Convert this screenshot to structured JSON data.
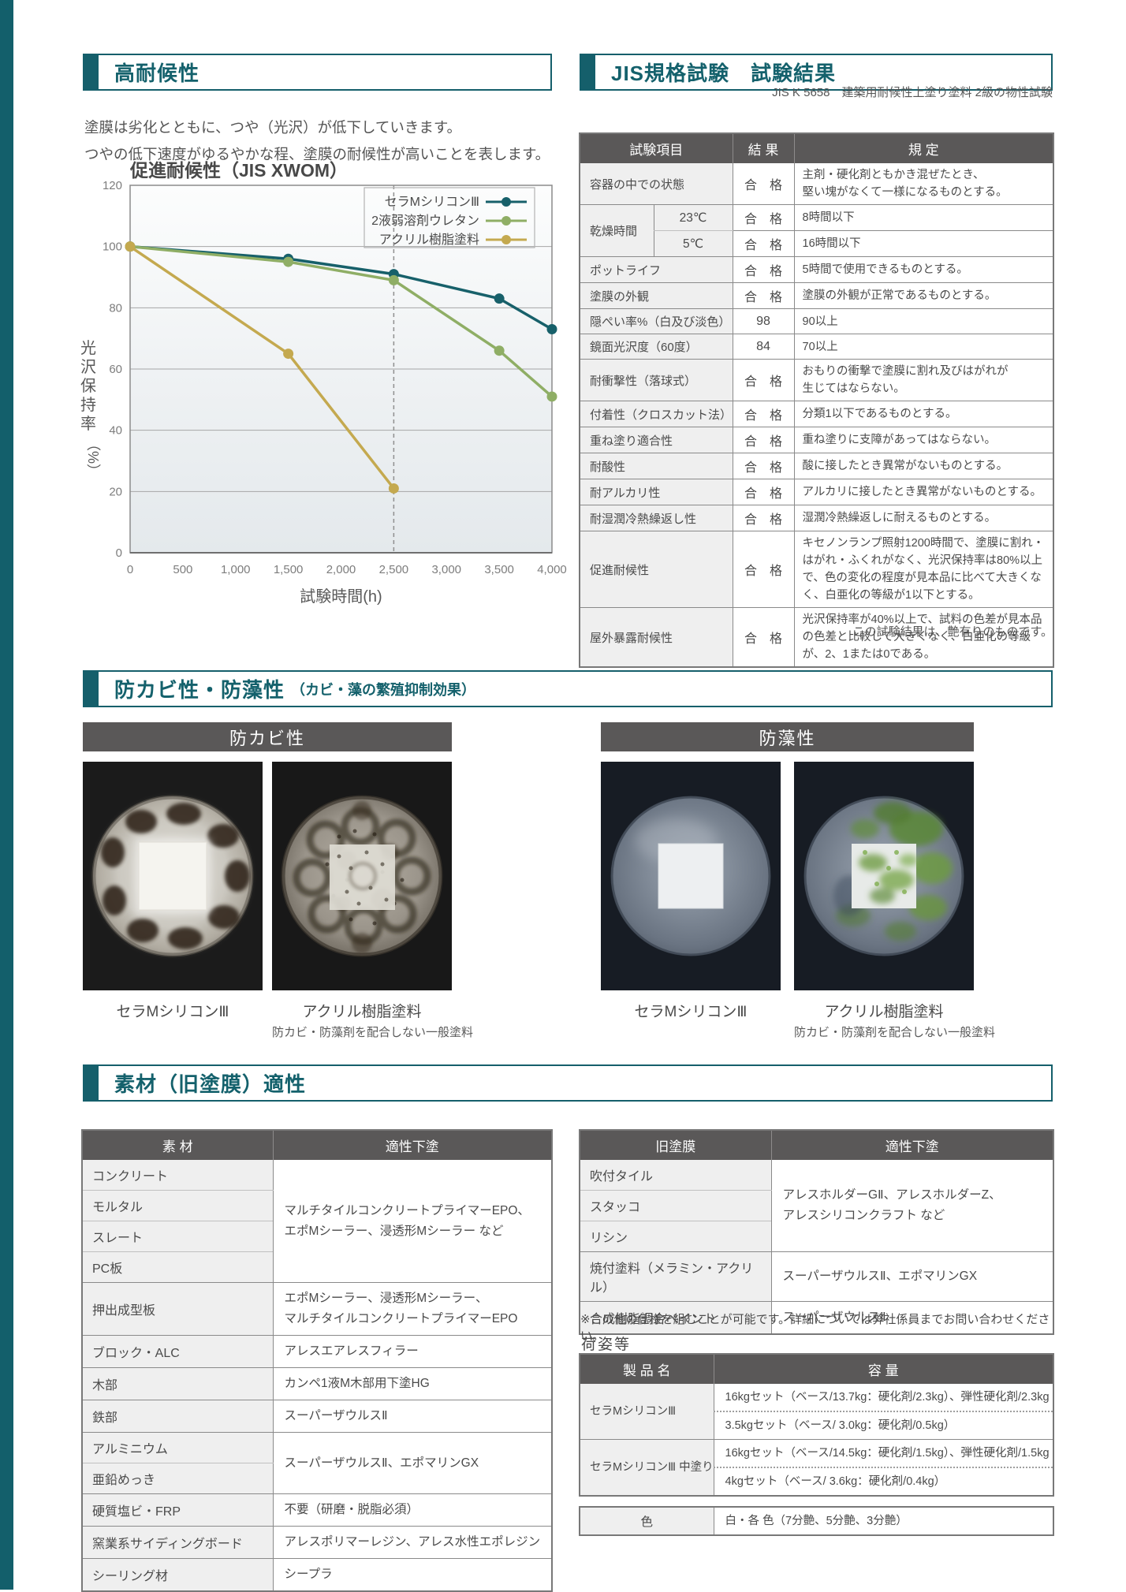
{
  "theme": {
    "accent": "#155f6b",
    "table_header_bg": "#5a5858",
    "label_cell_bg": "#efefef"
  },
  "weather": {
    "title": "高耐候性",
    "desc1": "塗膜は劣化とともに、つや（光沢）が低下していきます。",
    "desc2": "つやの低下速度がゆるやかな程、塗膜の耐候性が高いことを表します。"
  },
  "chart_data": {
    "type": "line",
    "title": "促進耐候性（JIS XWOM）",
    "xlabel": "試験時間(h)",
    "ylabel": "光沢保持率（%）",
    "xlim": [
      0,
      4000
    ],
    "ylim": [
      0,
      120
    ],
    "xticks": [
      0,
      500,
      1000,
      1500,
      2000,
      2500,
      3000,
      3500,
      4000
    ],
    "xtick_labels": [
      "0",
      "500",
      "1,000",
      "1,500",
      "2,000",
      "2,500",
      "3,000",
      "3,500",
      "4,000"
    ],
    "yticks": [
      0,
      20,
      40,
      60,
      80,
      100,
      120
    ],
    "vline_x": 2500,
    "grid": true,
    "legend_position": "top-right",
    "series": [
      {
        "name": "セラMシリコンⅢ",
        "color": "#17606a",
        "x": [
          0,
          1500,
          2500,
          3500,
          4000
        ],
        "y": [
          100,
          96,
          91,
          83,
          73
        ]
      },
      {
        "name": "2液弱溶剤ウレタン",
        "color": "#8fae65",
        "x": [
          0,
          1500,
          2500,
          3500,
          4000
        ],
        "y": [
          100,
          95,
          89,
          66,
          51
        ]
      },
      {
        "name": "アクリル樹脂塗料",
        "color": "#c4a94f",
        "x": [
          0,
          1500,
          2500
        ],
        "y": [
          100,
          65,
          21
        ]
      }
    ]
  },
  "jis": {
    "title": "JIS規格試験　試験結果",
    "subtitle": "JIS K 5658　建築用耐候性上塗り塗料 2級の物性試験",
    "col_headers": [
      "試験項目",
      "結 果",
      "規 定"
    ],
    "rows": [
      [
        {
          "t": "容器の中での状態",
          "c": "lab",
          "cs": 2
        },
        {
          "t": "合　格",
          "c": "res"
        },
        {
          "t": "主剤・硬化剤ともかき混ぜたとき、\n堅い塊がなくて一様になるものとする。",
          "c": "reg"
        }
      ],
      [
        {
          "t": "乾燥時間",
          "c": "lab",
          "rs": 2
        },
        {
          "t": "23℃",
          "c": "sub tb"
        },
        {
          "t": "合　格",
          "c": "res"
        },
        {
          "t": "8時間以下",
          "c": "reg"
        }
      ],
      [
        {
          "t": "5℃",
          "c": "sub"
        },
        {
          "t": "合　格",
          "c": "res"
        },
        {
          "t": "16時間以下",
          "c": "reg"
        }
      ],
      [
        {
          "t": "ポットライフ",
          "c": "lab",
          "cs": 2
        },
        {
          "t": "合　格",
          "c": "res"
        },
        {
          "t": "5時間で使用できるものとする。",
          "c": "reg"
        }
      ],
      [
        {
          "t": "塗膜の外観",
          "c": "lab",
          "cs": 2
        },
        {
          "t": "合　格",
          "c": "res"
        },
        {
          "t": "塗膜の外観が正常であるものとする。",
          "c": "reg"
        }
      ],
      [
        {
          "t": "隠ぺい率%（白及び淡色）",
          "c": "lab",
          "cs": 2
        },
        {
          "t": "98",
          "c": "res"
        },
        {
          "t": "90以上",
          "c": "reg"
        }
      ],
      [
        {
          "t": "鏡面光沢度（60度）",
          "c": "lab",
          "cs": 2
        },
        {
          "t": "84",
          "c": "res"
        },
        {
          "t": "70以上",
          "c": "reg"
        }
      ],
      [
        {
          "t": "耐衝撃性（落球式）",
          "c": "lab",
          "cs": 2
        },
        {
          "t": "合　格",
          "c": "res"
        },
        {
          "t": "おもりの衝撃で塗膜に割れ及びはがれが\n生じてはならない。",
          "c": "reg"
        }
      ],
      [
        {
          "t": "付着性（クロスカット法）",
          "c": "lab",
          "cs": 2
        },
        {
          "t": "合　格",
          "c": "res"
        },
        {
          "t": "分類1以下であるものとする。",
          "c": "reg"
        }
      ],
      [
        {
          "t": "重ね塗り適合性",
          "c": "lab",
          "cs": 2
        },
        {
          "t": "合　格",
          "c": "res"
        },
        {
          "t": "重ね塗りに支障があってはならない。",
          "c": "reg"
        }
      ],
      [
        {
          "t": "耐酸性",
          "c": "lab",
          "cs": 2
        },
        {
          "t": "合　格",
          "c": "res"
        },
        {
          "t": "酸に接したとき異常がないものとする。",
          "c": "reg"
        }
      ],
      [
        {
          "t": "耐アルカリ性",
          "c": "lab",
          "cs": 2
        },
        {
          "t": "合　格",
          "c": "res"
        },
        {
          "t": "アルカリに接したとき異常がないものとする。",
          "c": "reg"
        }
      ],
      [
        {
          "t": "耐湿潤冷熱繰返し性",
          "c": "lab",
          "cs": 2
        },
        {
          "t": "合　格",
          "c": "res"
        },
        {
          "t": "湿潤冷熱繰返しに耐えるものとする。",
          "c": "reg"
        }
      ],
      [
        {
          "t": "促進耐候性",
          "c": "lab",
          "cs": 2
        },
        {
          "t": "合　格",
          "c": "res"
        },
        {
          "t": "キセノンランプ照射1200時間で、塗膜に割れ・はがれ・ふくれがなく、光沢保持率は80%以上で、色の変化の程度が見本品に比べて大きくなく、白亜化の等級が1以下とする。",
          "c": "reg"
        }
      ],
      [
        {
          "t": "屋外暴露耐候性",
          "c": "lab",
          "cs": 2
        },
        {
          "t": "合　格",
          "c": "res"
        },
        {
          "t": "光沢保持率が40%以上で、試料の色差が見本品の色差と比較して大きくなく、白亜化の等級が、2、1または0である。",
          "c": "reg"
        }
      ]
    ],
    "footnote": "この試験結果は、艶有りのものです。"
  },
  "bio": {
    "title": "防カビ性・防藻性",
    "note": "（カビ・藻の繁殖抑制効果）",
    "panels": [
      {
        "label": "防カビ性",
        "images": [
          {
            "caption": "セラMシリコンⅢ",
            "subcaption": ""
          },
          {
            "caption": "アクリル樹脂塗料",
            "subcaption": "防カビ・防藻剤を配合しない一般塗料"
          }
        ]
      },
      {
        "label": "防藻性",
        "images": [
          {
            "caption": "セラMシリコンⅢ",
            "subcaption": ""
          },
          {
            "caption": "アクリル樹脂塗料",
            "subcaption": "防カビ・防藻剤を配合しない一般塗料"
          }
        ]
      }
    ]
  },
  "sub": {
    "title": "素材（旧塗膜）適性",
    "material": {
      "headers": [
        "素 材",
        "適性下塗"
      ],
      "rows": [
        [
          {
            "t": "コンクリート",
            "c": "lab tb"
          },
          {
            "t": "マルチタイルコンクリートプライマーEPO、\nエポMシーラー、浸透形Mシーラー など",
            "c": "val",
            "rs": 4
          }
        ],
        [
          {
            "t": "モルタル",
            "c": "lab tb"
          }
        ],
        [
          {
            "t": "スレート",
            "c": "lab tb"
          }
        ],
        [
          {
            "t": "PC板",
            "c": "lab"
          }
        ],
        [
          {
            "t": "押出成型板",
            "c": "lab"
          },
          {
            "t": "エポMシーラー、浸透形Mシーラー、\nマルチタイルコンクリートプライマーEPO",
            "c": "val"
          }
        ],
        [
          {
            "t": "ブロック・ALC",
            "c": "lab"
          },
          {
            "t": "アレスエアレスフィラー",
            "c": "val"
          }
        ],
        [
          {
            "t": "木部",
            "c": "lab"
          },
          {
            "t": "カンペ1液M木部用下塗HG",
            "c": "val"
          }
        ],
        [
          {
            "t": "鉄部",
            "c": "lab"
          },
          {
            "t": "スーパーザウルスⅡ",
            "c": "val"
          }
        ],
        [
          {
            "t": "アルミニウム",
            "c": "lab tb"
          },
          {
            "t": "スーパーザウルスⅡ、エポマリンGX",
            "c": "val",
            "rs": 2
          }
        ],
        [
          {
            "t": "亜鉛めっき",
            "c": "lab"
          }
        ],
        [
          {
            "t": "硬質塩ビ・FRP",
            "c": "lab"
          },
          {
            "t": "不要（研磨・脱脂必須）",
            "c": "val"
          }
        ],
        [
          {
            "t": "窯業系サイディングボード",
            "c": "lab"
          },
          {
            "t": "アレスポリマーレジン、アレス水性エポレジン",
            "c": "val"
          }
        ],
        [
          {
            "t": "シーリング材",
            "c": "lab"
          },
          {
            "t": "シープラ",
            "c": "val"
          }
        ]
      ]
    },
    "old": {
      "headers": [
        "旧塗膜",
        "適性下塗"
      ],
      "rows": [
        [
          {
            "t": "吹付タイル",
            "c": "lab tb"
          },
          {
            "t": "アレスホルダーGⅡ、アレスホルダーZ、\nアレスシリコンクラフト など",
            "c": "val",
            "rs": 3
          }
        ],
        [
          {
            "t": "スタッコ",
            "c": "lab tb"
          }
        ],
        [
          {
            "t": "リシン",
            "c": "lab"
          }
        ],
        [
          {
            "t": "焼付塗料（メラミン・アクリル）",
            "c": "lab"
          },
          {
            "t": "スーパーザウルスⅡ、エポマリンGX",
            "c": "val"
          }
        ],
        [
          {
            "t": "合成樹脂調合ペイント",
            "c": "lab"
          },
          {
            "t": "スーパーザウルスⅡ",
            "c": "val"
          }
        ]
      ]
    },
    "note": "※この他の仕様を組むことが可能です。詳細については弊社係員までお問い合わせください。",
    "packaging_label": "荷姿等",
    "pack": {
      "headers": [
        "製 品 名",
        "容 量"
      ],
      "rows": [
        [
          {
            "t": "セラMシリコンⅢ",
            "c": "lab sm",
            "rs": 2
          },
          {
            "t": "16kgセット（ベース/13.7kg：硬化剤/2.3kg）、弾性硬化剤/2.3kg",
            "c": "val sm dot"
          }
        ],
        [
          {
            "t": "3.5kgセット（ベース/ 3.0kg：硬化剤/0.5kg）",
            "c": "val sm"
          }
        ],
        [
          {
            "t": "セラMシリコンⅢ 中塗り",
            "c": "lab sm",
            "rs": 2
          },
          {
            "t": "16kgセット（ベース/14.5kg：硬化剤/1.5kg）、弾性硬化剤/1.5kg",
            "c": "val sm dot"
          }
        ],
        [
          {
            "t": "4kgセット（ベース/ 3.6kg：硬化剤/0.4kg）",
            "c": "val sm"
          }
        ]
      ]
    },
    "color": {
      "rows": [
        [
          {
            "t": "色",
            "c": "sub"
          },
          {
            "t": "白・各 色（7分艶、5分艶、3分艶）",
            "c": "val sm"
          }
        ]
      ]
    }
  }
}
